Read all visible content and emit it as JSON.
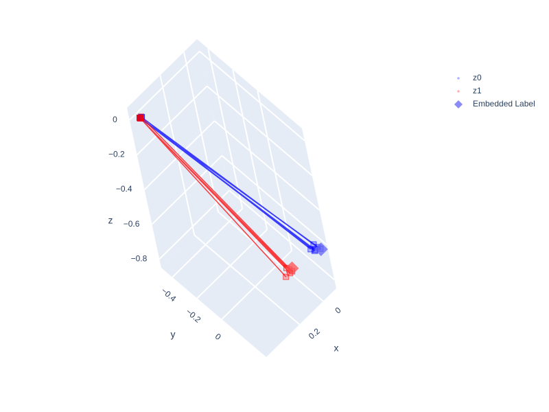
{
  "chart_data": {
    "type": "scatter3d",
    "xlim": [
      -0.11,
      0.48
    ],
    "ylim": [
      -0.49,
      0.36
    ],
    "zlim": [
      -0.85,
      0.07
    ],
    "xticks": [
      0,
      0.2
    ],
    "yticks": [
      {
        "value": -0.4,
        "label": "−0.4"
      },
      {
        "value": -0.2,
        "label": "−0.2"
      },
      0
    ],
    "zticks": [
      0,
      {
        "value": -0.2,
        "label": "−0.2"
      },
      {
        "value": -0.4,
        "label": "−0.4"
      },
      {
        "value": -0.6,
        "label": "−0.6"
      },
      {
        "value": -0.8,
        "label": "−0.8"
      }
    ],
    "xlabel": "x",
    "ylabel": "y",
    "zlabel": "z",
    "grid": true,
    "series": [
      {
        "name": "z0",
        "color": "#0000ff",
        "mode": "lines+markers",
        "x": [
          0.43,
          -0.08,
          null,
          0.43,
          -0.07,
          null,
          0.42,
          -0.06,
          null,
          0.43,
          -0.1,
          null,
          0.43,
          -0.1,
          null,
          0.42,
          -0.04
        ],
        "y": [
          -0.455,
          0.33,
          null,
          -0.455,
          0.32,
          null,
          -0.45,
          0.3,
          null,
          -0.455,
          0.24,
          null,
          -0.45,
          0.245,
          null,
          -0.45,
          0.29
        ],
        "z": [
          0,
          -0.62,
          null,
          0,
          -0.61,
          null,
          0,
          -0.6,
          null,
          0,
          -0.7,
          null,
          0,
          -0.69,
          null,
          0,
          -0.62
        ]
      },
      {
        "name": "z1",
        "color": "#ff0000",
        "mode": "lines+markers",
        "x": [
          0.43,
          0.02,
          null,
          0.43,
          0.03,
          null,
          0.42,
          0.01,
          null,
          0.43,
          0.04,
          null,
          0.43,
          0.02
        ],
        "y": [
          -0.455,
          0.12,
          null,
          -0.45,
          0.11,
          null,
          -0.455,
          0.13,
          null,
          -0.45,
          0.1,
          null,
          -0.455,
          0.12
        ],
        "z": [
          0,
          -0.8,
          null,
          0,
          -0.79,
          null,
          0,
          -0.81,
          null,
          0,
          -0.84,
          null,
          0,
          -0.82
        ]
      },
      {
        "name": "Embedded Label",
        "color": "#6464f5",
        "mode": "markers",
        "symbol": "diamond",
        "colors": [
          "#6464f5",
          "#ff5050"
        ],
        "x": [
          -0.08,
          0.01
        ],
        "y": [
          0.335,
          0.135
        ],
        "z": [
          -0.62,
          -0.79
        ]
      }
    ]
  }
}
